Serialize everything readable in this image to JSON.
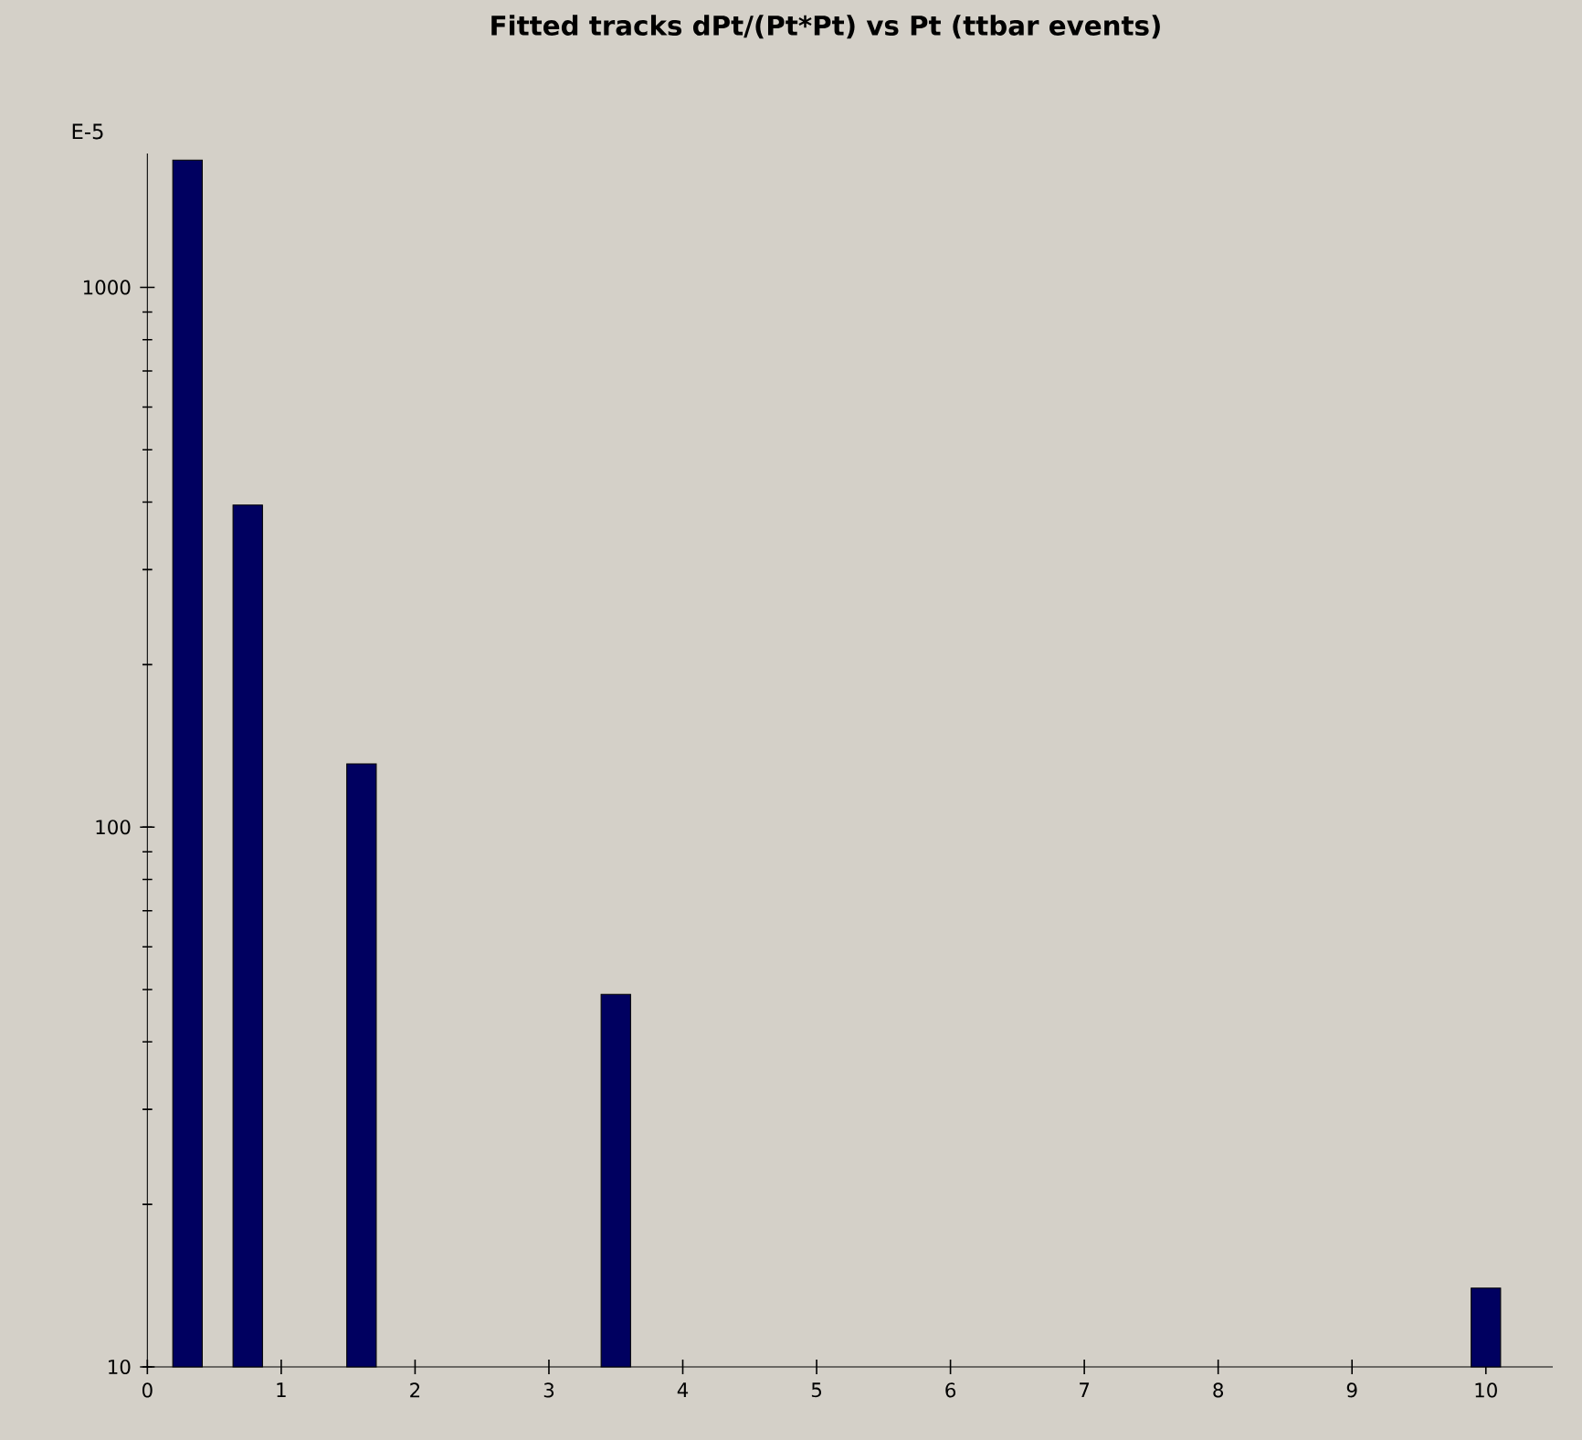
{
  "chart_data": {
    "type": "bar",
    "title": "Fitted tracks dPt/(Pt*Pt) vs Pt (ttbar events)",
    "ylabel": "E-5",
    "x": [
      0.3,
      0.75,
      1.6,
      3.5,
      10
    ],
    "values": [
      1720,
      395,
      131,
      49,
      14
    ],
    "color": "#000060",
    "log": "y",
    "xlim": [
      0,
      10.5
    ],
    "ylim": [
      10,
      1770
    ],
    "xticks": [
      0,
      1,
      2,
      3,
      4,
      5,
      6,
      7,
      8,
      9,
      10
    ],
    "yticks": [
      10,
      100,
      1000
    ]
  }
}
